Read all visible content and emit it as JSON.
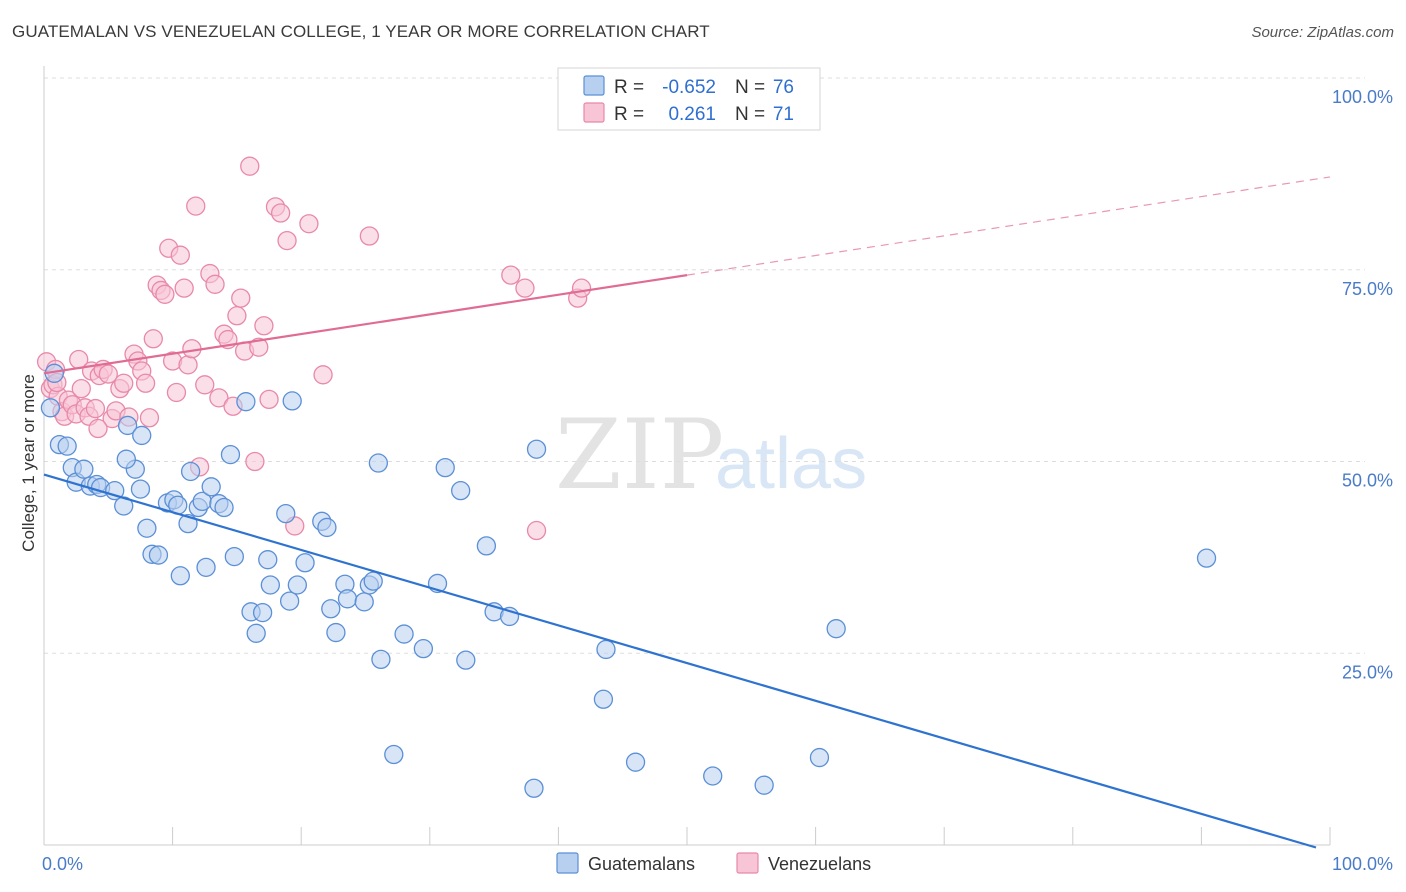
{
  "title": "GUATEMALAN VS VENEZUELAN COLLEGE, 1 YEAR OR MORE CORRELATION CHART",
  "source": "Source: ZipAtlas.com",
  "watermark": {
    "zip": "ZIP",
    "atlas": "atlas"
  },
  "colors": {
    "blue": "#5b8fd6",
    "blue_fill": "#b8d0f0",
    "blue_line": "#2f73d0",
    "pink": "#e889a8",
    "pink_fill": "#f7c5d5",
    "pink_line": "#e06b94",
    "grid": "#dddddd",
    "tick_text": "#4a7bc8"
  },
  "legend": {
    "rows": [
      {
        "r_label": "R =",
        "r_value": "-0.652",
        "n_label": "N =",
        "n_value": "76",
        "series": "blue"
      },
      {
        "r_label": "R =",
        "r_value": "0.261",
        "n_label": "N =",
        "n_value": "71",
        "series": "pink"
      }
    ]
  },
  "bottom_legend": [
    "Guatemalans",
    "Venezuelans"
  ],
  "chart_data": {
    "type": "scatter",
    "title": "GUATEMALAN VS VENEZUELAN COLLEGE, 1 YEAR OR MORE CORRELATION CHART",
    "xlabel": "",
    "ylabel": "College, 1 year or more",
    "xlim": [
      0,
      100
    ],
    "ylim": [
      0,
      100
    ],
    "x_tick_labels": [
      "0.0%",
      "100.0%"
    ],
    "y_ticks": [
      {
        "value": 25,
        "label": "25.0%"
      },
      {
        "value": 50,
        "label": "50.0%"
      },
      {
        "value": 75,
        "label": "75.0%"
      },
      {
        "value": 100,
        "label": "100.0%"
      }
    ],
    "grid": true,
    "legend_position": "top-center",
    "series": [
      {
        "name": "Guatemalans",
        "color": "blue",
        "r": -0.652,
        "n": 76,
        "trend": {
          "x": [
            0,
            100
          ],
          "y": [
            48.3,
            -1.5
          ],
          "dashed_from": null
        },
        "points": [
          [
            0.5,
            57
          ],
          [
            0.8,
            61.5
          ],
          [
            1.2,
            52.2
          ],
          [
            1.8,
            52
          ],
          [
            2.2,
            49.2
          ],
          [
            2.5,
            47.3
          ],
          [
            3.1,
            49
          ],
          [
            3.6,
            46.8
          ],
          [
            4.1,
            47
          ],
          [
            4.4,
            46.6
          ],
          [
            5.5,
            46.2
          ],
          [
            6.2,
            44.2
          ],
          [
            6.5,
            54.7
          ],
          [
            7.1,
            49
          ],
          [
            6.4,
            50.3
          ],
          [
            7.5,
            46.4
          ],
          [
            7.6,
            53.4
          ],
          [
            8.0,
            41.3
          ],
          [
            8.4,
            37.9
          ],
          [
            8.9,
            37.8
          ],
          [
            9.6,
            44.6
          ],
          [
            10.1,
            45.0
          ],
          [
            10.4,
            44.3
          ],
          [
            10.6,
            35.1
          ],
          [
            11.2,
            41.9
          ],
          [
            11.4,
            48.7
          ],
          [
            12.0,
            44.0
          ],
          [
            12.3,
            44.8
          ],
          [
            12.6,
            36.2
          ],
          [
            13.0,
            46.7
          ],
          [
            13.6,
            44.5
          ],
          [
            14.0,
            44.0
          ],
          [
            14.5,
            50.9
          ],
          [
            14.8,
            37.6
          ],
          [
            15.7,
            57.8
          ],
          [
            16.1,
            30.4
          ],
          [
            16.5,
            27.6
          ],
          [
            17.0,
            30.3
          ],
          [
            17.4,
            37.2
          ],
          [
            17.6,
            33.9
          ],
          [
            18.8,
            43.2
          ],
          [
            19.1,
            31.8
          ],
          [
            19.3,
            57.9
          ],
          [
            19.7,
            33.9
          ],
          [
            20.3,
            36.8
          ],
          [
            21.6,
            42.2
          ],
          [
            22.0,
            41.4
          ],
          [
            22.3,
            30.8
          ],
          [
            22.7,
            27.7
          ],
          [
            23.4,
            34.0
          ],
          [
            23.6,
            32.1
          ],
          [
            24.9,
            31.7
          ],
          [
            25.3,
            33.9
          ],
          [
            25.6,
            34.4
          ],
          [
            26.0,
            49.8
          ],
          [
            26.2,
            24.2
          ],
          [
            27.2,
            11.8
          ],
          [
            28.0,
            27.5
          ],
          [
            29.5,
            25.6
          ],
          [
            30.6,
            34.1
          ],
          [
            31.2,
            49.2
          ],
          [
            32.8,
            24.1
          ],
          [
            32.4,
            46.2
          ],
          [
            34.4,
            39.0
          ],
          [
            35.0,
            30.4
          ],
          [
            36.2,
            29.8
          ],
          [
            38.1,
            7.4
          ],
          [
            38.3,
            51.6
          ],
          [
            43.7,
            25.5
          ],
          [
            43.5,
            19.0
          ],
          [
            46.0,
            10.8
          ],
          [
            52.0,
            9.0
          ],
          [
            56.0,
            7.8
          ],
          [
            60.3,
            11.4
          ],
          [
            61.6,
            28.2
          ],
          [
            90.4,
            37.4
          ]
        ]
      },
      {
        "name": "Venezuelans",
        "color": "pink",
        "r": 0.261,
        "n": 71,
        "trend": {
          "x": [
            0,
            100
          ],
          "y": [
            61.5,
            87.1
          ],
          "dashed_from": 50
        },
        "points": [
          [
            0.2,
            63.0
          ],
          [
            0.5,
            59.5
          ],
          [
            0.7,
            60.0
          ],
          [
            0.9,
            62.0
          ],
          [
            1.1,
            58.5
          ],
          [
            1.4,
            56.5
          ],
          [
            1.6,
            55.9
          ],
          [
            1.9,
            58.0
          ],
          [
            2.2,
            57.4
          ],
          [
            2.5,
            56.2
          ],
          [
            2.7,
            63.3
          ],
          [
            2.9,
            59.5
          ],
          [
            3.2,
            57.0
          ],
          [
            3.5,
            55.9
          ],
          [
            3.7,
            61.8
          ],
          [
            4.0,
            56.9
          ],
          [
            4.3,
            61.2
          ],
          [
            4.6,
            62.0
          ],
          [
            5.0,
            61.4
          ],
          [
            5.3,
            55.6
          ],
          [
            5.6,
            56.6
          ],
          [
            5.9,
            59.5
          ],
          [
            6.2,
            60.2
          ],
          [
            6.6,
            55.8
          ],
          [
            7.0,
            64.0
          ],
          [
            7.3,
            63.1
          ],
          [
            7.6,
            61.8
          ],
          [
            7.9,
            60.2
          ],
          [
            8.2,
            55.7
          ],
          [
            8.5,
            66.0
          ],
          [
            8.8,
            73.0
          ],
          [
            9.1,
            72.3
          ],
          [
            9.4,
            71.8
          ],
          [
            9.7,
            77.8
          ],
          [
            10.0,
            63.1
          ],
          [
            10.3,
            59.0
          ],
          [
            10.6,
            76.9
          ],
          [
            10.9,
            72.6
          ],
          [
            11.2,
            62.6
          ],
          [
            11.5,
            64.7
          ],
          [
            11.8,
            83.3
          ],
          [
            12.1,
            49.3
          ],
          [
            12.5,
            60.0
          ],
          [
            12.9,
            74.5
          ],
          [
            13.3,
            73.1
          ],
          [
            13.6,
            58.3
          ],
          [
            14.0,
            66.6
          ],
          [
            14.3,
            65.9
          ],
          [
            14.7,
            57.2
          ],
          [
            15.0,
            69.0
          ],
          [
            15.3,
            71.3
          ],
          [
            15.6,
            64.4
          ],
          [
            16.0,
            88.5
          ],
          [
            16.4,
            50.0
          ],
          [
            16.7,
            64.9
          ],
          [
            17.1,
            67.7
          ],
          [
            17.5,
            58.1
          ],
          [
            18.0,
            83.2
          ],
          [
            18.4,
            82.4
          ],
          [
            18.9,
            78.8
          ],
          [
            19.5,
            41.6
          ],
          [
            20.6,
            81.0
          ],
          [
            21.7,
            61.3
          ],
          [
            25.3,
            79.4
          ],
          [
            36.3,
            74.3
          ],
          [
            37.4,
            72.6
          ],
          [
            38.3,
            41.0
          ],
          [
            41.5,
            71.3
          ],
          [
            41.8,
            72.6
          ],
          [
            4.2,
            54.3
          ],
          [
            1.0,
            60.3
          ]
        ]
      }
    ]
  }
}
